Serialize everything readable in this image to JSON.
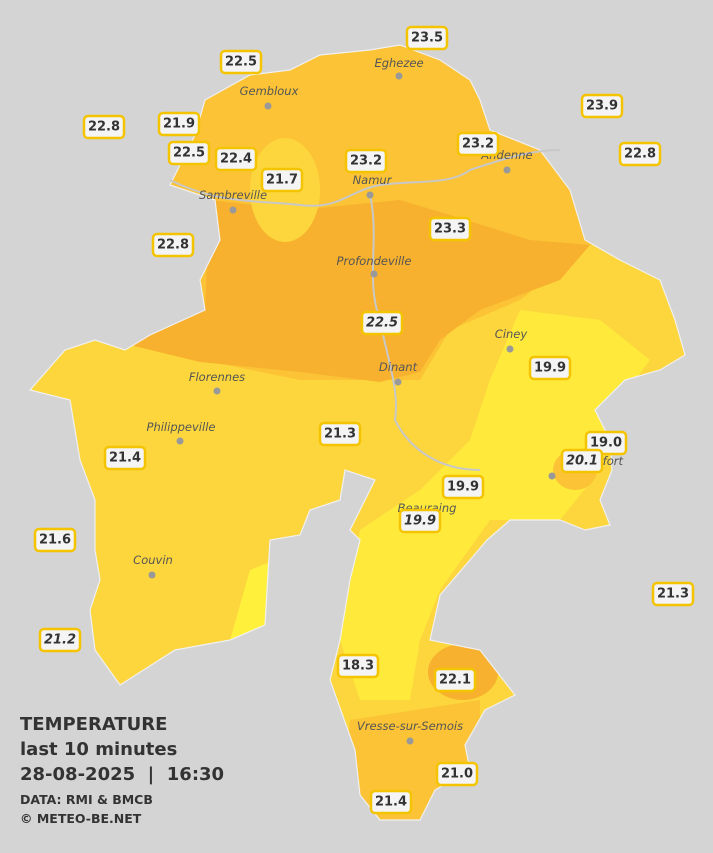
{
  "stations": [
    "23.5",
    "22.5",
    "23.9",
    "22.8",
    "21.9",
    "23.2",
    "22.8",
    "22.5",
    "22.4",
    "23.2",
    "21.7",
    "22.8",
    "23.3",
    "22.5",
    "19.9",
    "21.3",
    "19.0",
    "20.1",
    "21.4",
    "19.9",
    "19.9",
    "21.6",
    "21.3",
    "21.2",
    "18.3",
    "22.1",
    "21.0",
    "21.4"
  ],
  "places": [
    "Eghezee",
    "Gembloux",
    "Andenne",
    "Namur",
    "Sambreville",
    "Profondeville",
    "Ciney",
    "Dinant",
    "Florennes",
    "Philippeville",
    "Rochefort",
    "Beauraing",
    "Couvin",
    "Vresse-sur-Semois"
  ],
  "legend": {
    "title": "TEMPERATURE",
    "period": "last 10 minutes",
    "datetime": "28-08-2025  |  16:30",
    "source": "DATA: RMI & BMCB",
    "copyright": "© METEO-BE.NET"
  }
}
